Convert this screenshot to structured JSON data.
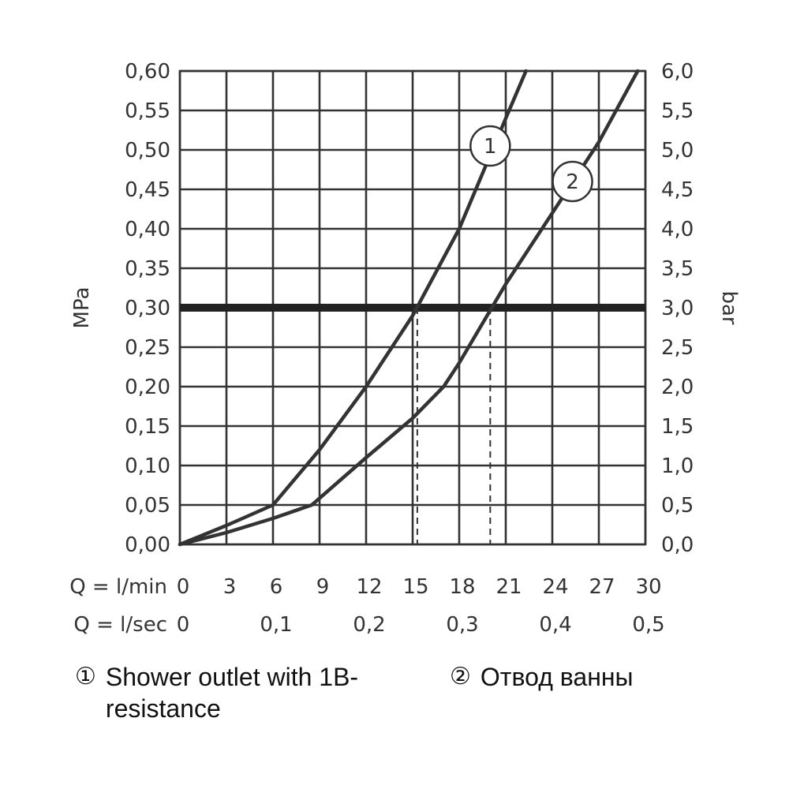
{
  "chart_data": {
    "type": "line",
    "left_axis": {
      "label": "MPa",
      "ylim": [
        0,
        0.6
      ],
      "ticks": [
        "0,00",
        "0,05",
        "0,10",
        "0,15",
        "0,20",
        "0,25",
        "0,30",
        "0,35",
        "0,40",
        "0,45",
        "0,50",
        "0,55",
        "0,60"
      ]
    },
    "right_axis": {
      "label": "bar",
      "ylim": [
        0,
        6.0
      ],
      "ticks": [
        "0,0",
        "0,5",
        "1,0",
        "1,5",
        "2,0",
        "2,5",
        "3,0",
        "3,5",
        "4,0",
        "4,5",
        "5,0",
        "5,5",
        "6,0"
      ]
    },
    "x_axis_lmin": {
      "label": "Q = l/min",
      "xlim": [
        0,
        30
      ],
      "ticks": [
        "0",
        "3",
        "6",
        "9",
        "12",
        "15",
        "18",
        "21",
        "24",
        "27",
        "30"
      ]
    },
    "x_axis_lsec": {
      "label": "Q = l/sec",
      "ticks": [
        "0",
        "0,1",
        "0,2",
        "0,3",
        "0,4",
        "0,5"
      ]
    },
    "grid": true,
    "reference_line": {
      "y_mpa": 0.3
    },
    "series": [
      {
        "name": "1",
        "x": [
          0,
          3,
          6,
          9,
          12,
          15,
          18,
          21,
          22.3
        ],
        "y": [
          0,
          0.024,
          0.05,
          0.12,
          0.2,
          0.29,
          0.4,
          0.54,
          0.6
        ],
        "intersection_x": 15.3
      },
      {
        "name": "2",
        "x": [
          0,
          3,
          6,
          8.5,
          12,
          15,
          17,
          18,
          21,
          24,
          27,
          29.5
        ],
        "y": [
          0,
          0.015,
          0.033,
          0.05,
          0.11,
          0.16,
          0.2,
          0.23,
          0.33,
          0.42,
          0.51,
          0.6
        ],
        "intersection_x": 20
      }
    ]
  },
  "legend": [
    {
      "marker": "①",
      "text": "Shower outlet with 1B-resistance"
    },
    {
      "marker": "②",
      "text": "Отвод ванны"
    }
  ]
}
